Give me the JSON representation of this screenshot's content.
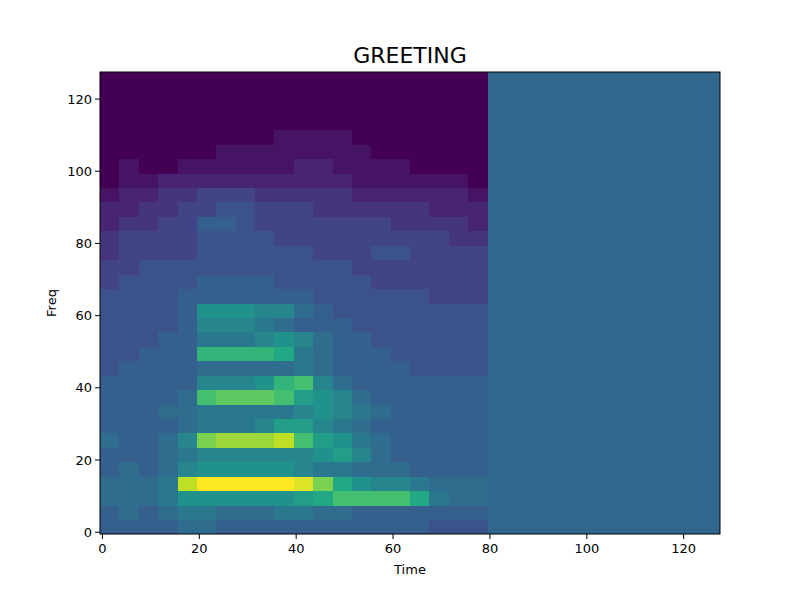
{
  "chart_data": {
    "type": "heatmap",
    "title": "GREETING",
    "x_label": "Time",
    "y_label": "Freq",
    "x_edges": [
      -0.5,
      3.5,
      7.5,
      11.5,
      15.5,
      19.5,
      23.5,
      27.5,
      31.5,
      35.5,
      39.5,
      43.5,
      47.5,
      51.5,
      55.5,
      59.5,
      63.5,
      67.5,
      71.5,
      75.5,
      79.5,
      83.5,
      87.5,
      91.5,
      95.5,
      99.5,
      103.5,
      107.5,
      111.5,
      115.5,
      119.5,
      123.5,
      127.5
    ],
    "y_edges": [
      -0.5,
      3.5,
      7.5,
      11.5,
      15.5,
      19.5,
      23.5,
      27.5,
      31.5,
      35.5,
      39.5,
      43.5,
      47.5,
      51.5,
      55.5,
      59.5,
      63.5,
      67.5,
      71.5,
      75.5,
      79.5,
      83.5,
      87.5,
      91.5,
      95.5,
      99.5,
      103.5,
      107.5,
      111.5,
      115.5,
      119.5,
      123.5,
      127.5
    ],
    "cells": [
      [
        0.3,
        0.3,
        0.3,
        0.3,
        0.35,
        0.35,
        0.3,
        0.3,
        0.3,
        0.3,
        0.3,
        0.3,
        0.3,
        0.3,
        0.3,
        0.3,
        0.3,
        0.25,
        0.25,
        0.25,
        0.33,
        0.33,
        0.33,
        0.33,
        0.33,
        0.33,
        0.33,
        0.33,
        0.33,
        0.33,
        0.33,
        0.33
      ],
      [
        0.3,
        0.35,
        0.3,
        0.35,
        0.4,
        0.4,
        0.35,
        0.35,
        0.35,
        0.4,
        0.4,
        0.35,
        0.35,
        0.3,
        0.3,
        0.3,
        0.3,
        0.3,
        0.3,
        0.3,
        0.33,
        0.33,
        0.33,
        0.33,
        0.33,
        0.33,
        0.33,
        0.33,
        0.33,
        0.33,
        0.33,
        0.33
      ],
      [
        0.35,
        0.35,
        0.35,
        0.4,
        0.5,
        0.5,
        0.5,
        0.5,
        0.5,
        0.5,
        0.55,
        0.6,
        0.7,
        0.7,
        0.7,
        0.7,
        0.6,
        0.4,
        0.35,
        0.35,
        0.33,
        0.33,
        0.33,
        0.33,
        0.33,
        0.33,
        0.33,
        0.33,
        0.33,
        0.33,
        0.33,
        0.33
      ],
      [
        0.35,
        0.35,
        0.35,
        0.4,
        0.9,
        1.0,
        1.0,
        1.0,
        1.0,
        1.0,
        0.95,
        0.8,
        0.6,
        0.5,
        0.45,
        0.45,
        0.4,
        0.35,
        0.35,
        0.35,
        0.33,
        0.33,
        0.33,
        0.33,
        0.33,
        0.33,
        0.33,
        0.33,
        0.33,
        0.33,
        0.33,
        0.33
      ],
      [
        0.3,
        0.35,
        0.3,
        0.35,
        0.45,
        0.5,
        0.5,
        0.5,
        0.5,
        0.5,
        0.45,
        0.4,
        0.4,
        0.35,
        0.35,
        0.35,
        0.3,
        0.3,
        0.3,
        0.3,
        0.33,
        0.33,
        0.33,
        0.33,
        0.33,
        0.33,
        0.33,
        0.33,
        0.33,
        0.33,
        0.33,
        0.33
      ],
      [
        0.3,
        0.3,
        0.3,
        0.35,
        0.4,
        0.45,
        0.45,
        0.45,
        0.45,
        0.45,
        0.45,
        0.5,
        0.55,
        0.45,
        0.35,
        0.3,
        0.3,
        0.3,
        0.3,
        0.3,
        0.33,
        0.33,
        0.33,
        0.33,
        0.33,
        0.33,
        0.33,
        0.33,
        0.33,
        0.33,
        0.33,
        0.33
      ],
      [
        0.35,
        0.3,
        0.3,
        0.35,
        0.45,
        0.8,
        0.85,
        0.85,
        0.85,
        0.9,
        0.7,
        0.55,
        0.5,
        0.4,
        0.35,
        0.3,
        0.3,
        0.3,
        0.3,
        0.3,
        0.33,
        0.33,
        0.33,
        0.33,
        0.33,
        0.33,
        0.33,
        0.33,
        0.33,
        0.33,
        0.33,
        0.33
      ],
      [
        0.3,
        0.3,
        0.3,
        0.3,
        0.35,
        0.4,
        0.4,
        0.4,
        0.45,
        0.55,
        0.55,
        0.45,
        0.4,
        0.35,
        0.3,
        0.3,
        0.3,
        0.3,
        0.3,
        0.3,
        0.33,
        0.33,
        0.33,
        0.33,
        0.33,
        0.33,
        0.33,
        0.33,
        0.33,
        0.33,
        0.33,
        0.33
      ],
      [
        0.3,
        0.3,
        0.3,
        0.35,
        0.35,
        0.4,
        0.4,
        0.4,
        0.4,
        0.4,
        0.45,
        0.5,
        0.45,
        0.4,
        0.35,
        0.3,
        0.3,
        0.3,
        0.3,
        0.3,
        0.33,
        0.33,
        0.33,
        0.33,
        0.33,
        0.33,
        0.33,
        0.33,
        0.33,
        0.33,
        0.33,
        0.33
      ],
      [
        0.3,
        0.3,
        0.3,
        0.3,
        0.35,
        0.7,
        0.75,
        0.75,
        0.75,
        0.7,
        0.55,
        0.5,
        0.45,
        0.35,
        0.3,
        0.3,
        0.3,
        0.3,
        0.3,
        0.3,
        0.33,
        0.33,
        0.33,
        0.33,
        0.33,
        0.33,
        0.33,
        0.33,
        0.33,
        0.33,
        0.33,
        0.33
      ],
      [
        0.3,
        0.3,
        0.3,
        0.3,
        0.3,
        0.45,
        0.45,
        0.45,
        0.5,
        0.65,
        0.7,
        0.45,
        0.35,
        0.3,
        0.3,
        0.3,
        0.3,
        0.3,
        0.3,
        0.3,
        0.33,
        0.33,
        0.33,
        0.33,
        0.33,
        0.33,
        0.33,
        0.33,
        0.33,
        0.33,
        0.33,
        0.33
      ],
      [
        0.25,
        0.3,
        0.3,
        0.3,
        0.3,
        0.35,
        0.35,
        0.35,
        0.35,
        0.35,
        0.4,
        0.35,
        0.3,
        0.3,
        0.3,
        0.3,
        0.25,
        0.25,
        0.25,
        0.25,
        0.33,
        0.33,
        0.33,
        0.33,
        0.33,
        0.33,
        0.33,
        0.33,
        0.33,
        0.33,
        0.33,
        0.33
      ],
      [
        0.25,
        0.25,
        0.3,
        0.3,
        0.3,
        0.65,
        0.65,
        0.65,
        0.65,
        0.6,
        0.4,
        0.35,
        0.3,
        0.3,
        0.3,
        0.25,
        0.25,
        0.25,
        0.25,
        0.25,
        0.33,
        0.33,
        0.33,
        0.33,
        0.33,
        0.33,
        0.33,
        0.33,
        0.33,
        0.33,
        0.33,
        0.33
      ],
      [
        0.25,
        0.25,
        0.25,
        0.3,
        0.3,
        0.4,
        0.4,
        0.4,
        0.45,
        0.5,
        0.45,
        0.35,
        0.3,
        0.3,
        0.25,
        0.25,
        0.25,
        0.25,
        0.25,
        0.25,
        0.33,
        0.33,
        0.33,
        0.33,
        0.33,
        0.33,
        0.33,
        0.33,
        0.33,
        0.33,
        0.33,
        0.33
      ],
      [
        0.25,
        0.25,
        0.25,
        0.25,
        0.3,
        0.45,
        0.45,
        0.45,
        0.4,
        0.35,
        0.3,
        0.3,
        0.3,
        0.25,
        0.25,
        0.25,
        0.25,
        0.25,
        0.25,
        0.25,
        0.33,
        0.33,
        0.33,
        0.33,
        0.33,
        0.33,
        0.33,
        0.33,
        0.33,
        0.33,
        0.33,
        0.33
      ],
      [
        0.25,
        0.25,
        0.25,
        0.25,
        0.3,
        0.5,
        0.5,
        0.5,
        0.45,
        0.45,
        0.35,
        0.3,
        0.25,
        0.25,
        0.25,
        0.25,
        0.25,
        0.25,
        0.25,
        0.25,
        0.33,
        0.33,
        0.33,
        0.33,
        0.33,
        0.33,
        0.33,
        0.33,
        0.33,
        0.33,
        0.33,
        0.33
      ],
      [
        0.25,
        0.25,
        0.25,
        0.25,
        0.3,
        0.3,
        0.3,
        0.3,
        0.3,
        0.3,
        0.3,
        0.25,
        0.25,
        0.25,
        0.25,
        0.25,
        0.25,
        0.2,
        0.2,
        0.2,
        0.33,
        0.33,
        0.33,
        0.33,
        0.33,
        0.33,
        0.33,
        0.33,
        0.33,
        0.33,
        0.33,
        0.33
      ],
      [
        0.2,
        0.25,
        0.25,
        0.25,
        0.25,
        0.3,
        0.3,
        0.3,
        0.3,
        0.25,
        0.25,
        0.25,
        0.25,
        0.25,
        0.2,
        0.2,
        0.2,
        0.2,
        0.2,
        0.2,
        0.33,
        0.33,
        0.33,
        0.33,
        0.33,
        0.33,
        0.33,
        0.33,
        0.33,
        0.33,
        0.33,
        0.33
      ],
      [
        0.2,
        0.2,
        0.25,
        0.25,
        0.25,
        0.25,
        0.25,
        0.25,
        0.25,
        0.25,
        0.25,
        0.25,
        0.25,
        0.2,
        0.2,
        0.2,
        0.2,
        0.2,
        0.2,
        0.2,
        0.33,
        0.33,
        0.33,
        0.33,
        0.33,
        0.33,
        0.33,
        0.33,
        0.33,
        0.33,
        0.33,
        0.33
      ],
      [
        0.15,
        0.2,
        0.2,
        0.2,
        0.2,
        0.25,
        0.25,
        0.25,
        0.25,
        0.25,
        0.25,
        0.2,
        0.2,
        0.2,
        0.25,
        0.25,
        0.2,
        0.2,
        0.2,
        0.2,
        0.33,
        0.33,
        0.33,
        0.33,
        0.33,
        0.33,
        0.33,
        0.33,
        0.33,
        0.33,
        0.33,
        0.33
      ],
      [
        0.15,
        0.2,
        0.2,
        0.2,
        0.2,
        0.25,
        0.25,
        0.25,
        0.25,
        0.2,
        0.2,
        0.2,
        0.2,
        0.2,
        0.2,
        0.2,
        0.2,
        0.2,
        0.15,
        0.15,
        0.33,
        0.33,
        0.33,
        0.33,
        0.33,
        0.33,
        0.33,
        0.33,
        0.33,
        0.33,
        0.33,
        0.33
      ],
      [
        0.1,
        0.15,
        0.15,
        0.2,
        0.2,
        0.3,
        0.3,
        0.25,
        0.2,
        0.2,
        0.2,
        0.2,
        0.2,
        0.2,
        0.2,
        0.15,
        0.15,
        0.15,
        0.15,
        0.1,
        0.33,
        0.33,
        0.33,
        0.33,
        0.33,
        0.33,
        0.33,
        0.33,
        0.33,
        0.33,
        0.33,
        0.33
      ],
      [
        0.1,
        0.1,
        0.15,
        0.15,
        0.2,
        0.2,
        0.25,
        0.25,
        0.2,
        0.2,
        0.2,
        0.15,
        0.15,
        0.15,
        0.15,
        0.15,
        0.15,
        0.1,
        0.1,
        0.1,
        0.33,
        0.33,
        0.33,
        0.33,
        0.33,
        0.33,
        0.33,
        0.33,
        0.33,
        0.33,
        0.33,
        0.33
      ],
      [
        0.05,
        0.1,
        0.1,
        0.15,
        0.15,
        0.2,
        0.2,
        0.2,
        0.15,
        0.15,
        0.15,
        0.15,
        0.15,
        0.1,
        0.1,
        0.1,
        0.1,
        0.1,
        0.1,
        0.05,
        0.33,
        0.33,
        0.33,
        0.33,
        0.33,
        0.33,
        0.33,
        0.33,
        0.33,
        0.33,
        0.33,
        0.33
      ],
      [
        0,
        0.05,
        0.05,
        0.1,
        0.1,
        0.1,
        0.1,
        0.1,
        0.1,
        0.1,
        0.1,
        0.1,
        0.1,
        0.05,
        0.05,
        0.05,
        0.05,
        0.05,
        0.05,
        0,
        0.33,
        0.33,
        0.33,
        0.33,
        0.33,
        0.33,
        0.33,
        0.33,
        0.33,
        0.33,
        0.33,
        0.33
      ],
      [
        0,
        0.05,
        0,
        0,
        0.05,
        0.05,
        0.05,
        0.05,
        0.05,
        0.05,
        0.1,
        0.1,
        0.05,
        0.05,
        0.05,
        0.05,
        0,
        0,
        0,
        0,
        0.33,
        0.33,
        0.33,
        0.33,
        0.33,
        0.33,
        0.33,
        0.33,
        0.33,
        0.33,
        0.33,
        0.33
      ],
      [
        0,
        0,
        0,
        0,
        0,
        0,
        0.05,
        0.05,
        0.05,
        0.05,
        0.05,
        0.05,
        0.05,
        0.05,
        0,
        0,
        0,
        0,
        0,
        0,
        0.33,
        0.33,
        0.33,
        0.33,
        0.33,
        0.33,
        0.33,
        0.33,
        0.33,
        0.33,
        0.33,
        0.33
      ],
      [
        0,
        0,
        0,
        0,
        0,
        0,
        0,
        0,
        0,
        0.05,
        0.05,
        0.05,
        0.05,
        0,
        0,
        0,
        0,
        0,
        0,
        0,
        0.33,
        0.33,
        0.33,
        0.33,
        0.33,
        0.33,
        0.33,
        0.33,
        0.33,
        0.33,
        0.33,
        0.33
      ],
      [
        0,
        0,
        0,
        0,
        0,
        0,
        0,
        0,
        0,
        0,
        0,
        0,
        0,
        0,
        0,
        0,
        0,
        0,
        0,
        0,
        0.33,
        0.33,
        0.33,
        0.33,
        0.33,
        0.33,
        0.33,
        0.33,
        0.33,
        0.33,
        0.33,
        0.33
      ],
      [
        0,
        0,
        0,
        0,
        0,
        0,
        0,
        0,
        0,
        0,
        0,
        0,
        0,
        0,
        0,
        0,
        0,
        0,
        0,
        0,
        0.33,
        0.33,
        0.33,
        0.33,
        0.33,
        0.33,
        0.33,
        0.33,
        0.33,
        0.33,
        0.33,
        0.33
      ],
      [
        0,
        0,
        0,
        0,
        0,
        0,
        0,
        0,
        0,
        0,
        0,
        0,
        0,
        0,
        0,
        0,
        0,
        0,
        0,
        0,
        0.33,
        0.33,
        0.33,
        0.33,
        0.33,
        0.33,
        0.33,
        0.33,
        0.33,
        0.33,
        0.33,
        0.33
      ],
      [
        0,
        0,
        0,
        0,
        0,
        0,
        0,
        0,
        0,
        0,
        0,
        0,
        0,
        0,
        0,
        0,
        0,
        0,
        0,
        0,
        0.33,
        0.33,
        0.33,
        0.33,
        0.33,
        0.33,
        0.33,
        0.33,
        0.33,
        0.33,
        0.33,
        0.33
      ]
    ],
    "color_range": [
      0,
      1
    ],
    "xlim": [
      -0.5,
      127.5
    ],
    "ylim": [
      -0.5,
      127.5
    ],
    "xticks": [
      0,
      20,
      40,
      60,
      80,
      100,
      120
    ],
    "yticks": [
      0,
      20,
      40,
      60,
      80,
      100,
      120
    ]
  }
}
